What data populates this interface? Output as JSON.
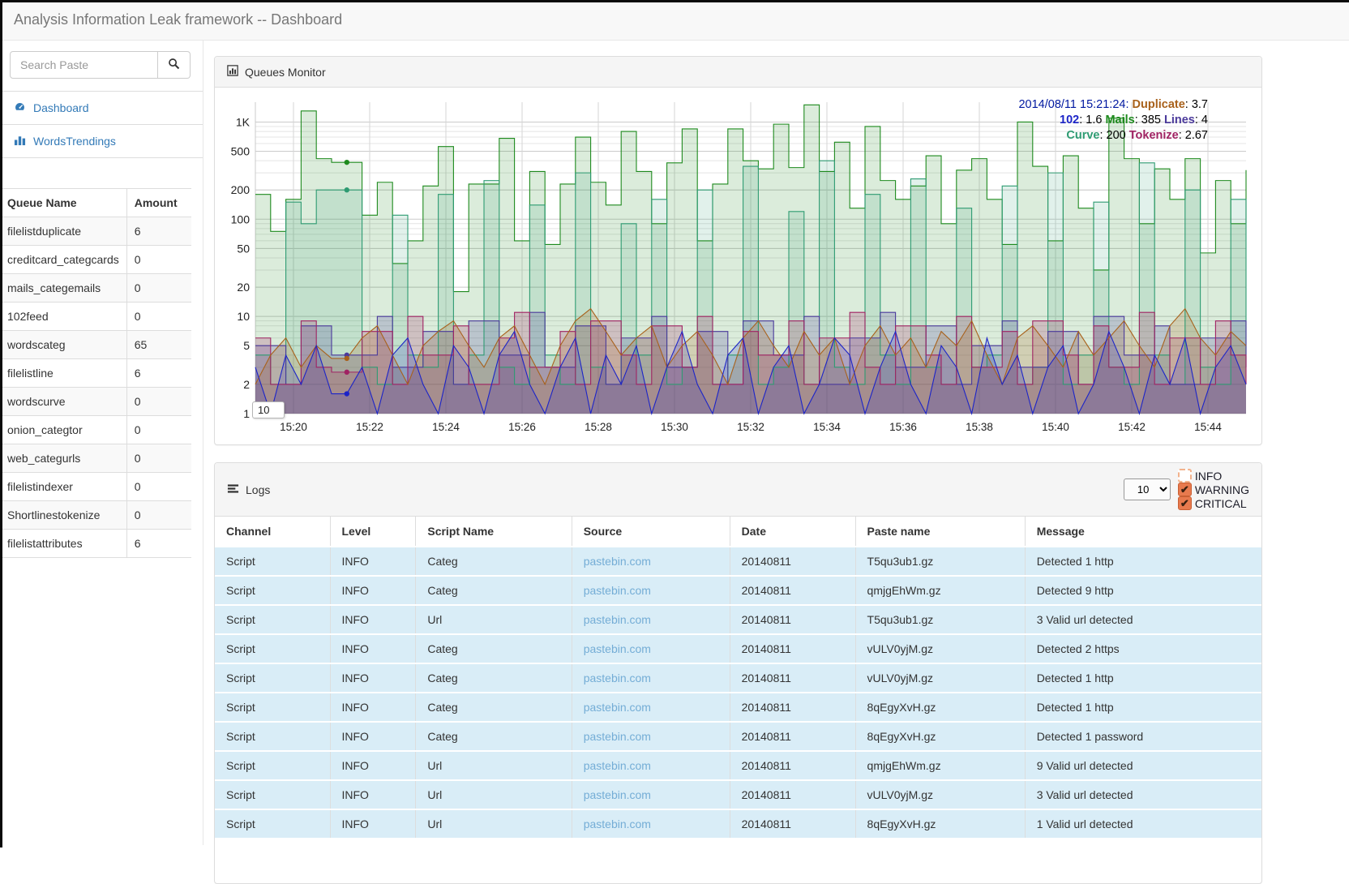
{
  "header": {
    "title": "Analysis Information Leak framework -- Dashboard"
  },
  "colors": {
    "accent_link": "#337ab7",
    "pastebin_link": "#74add6",
    "log_row_bg": "#d9edf7",
    "checkbox_orange": "#e87a4e",
    "navbar_text": "#777777"
  },
  "sidebar": {
    "search_placeholder": "Search Paste",
    "nav": [
      {
        "label": "Dashboard",
        "icon": "dashboard-icon"
      },
      {
        "label": "WordsTrendings",
        "icon": "bar-chart-icon"
      }
    ],
    "queues": {
      "columns": [
        "Queue Name",
        "Amount"
      ],
      "rows": [
        [
          "filelistduplicate",
          "6"
        ],
        [
          "creditcard_categcards",
          "0"
        ],
        [
          "mails_categemails",
          "0"
        ],
        [
          "102feed",
          "0"
        ],
        [
          "wordscateg",
          "65"
        ],
        [
          "filelistline",
          "6"
        ],
        [
          "wordscurve",
          "0"
        ],
        [
          "onion_categtor",
          "0"
        ],
        [
          "web_categurls",
          "0"
        ],
        [
          "filelistindexer",
          "0"
        ],
        [
          "Shortlinestokenize",
          "0"
        ],
        [
          "filelistattributes",
          "6"
        ]
      ]
    }
  },
  "monitor": {
    "title": "Queues Monitor",
    "roll_value": "10",
    "legend_lines": [
      [
        {
          "text": "2014/08/11 15:21:24:",
          "color": "#0018A0"
        },
        {
          "name": "Duplicate",
          "value": "3.7",
          "color": "#A8611B"
        }
      ],
      [
        {
          "name": "102",
          "value": "1.6",
          "color": "#1C24C8"
        },
        {
          "name": "Mails",
          "value": "385",
          "color": "#1E8A1E"
        },
        {
          "name": "Lines",
          "value": "4",
          "color": "#4B3A9B"
        }
      ],
      [
        {
          "name": "Curve",
          "value": "200",
          "color": "#2E9B72"
        },
        {
          "name": "Tokenize",
          "value": "2.67",
          "color": "#A02363"
        }
      ]
    ]
  },
  "chart_data": {
    "type": "line",
    "scale_y": "log",
    "grid": true,
    "ylim": [
      1,
      1600
    ],
    "y_ticks": [
      [
        1,
        "1"
      ],
      [
        2,
        "2"
      ],
      [
        5,
        "5"
      ],
      [
        10,
        "10"
      ],
      [
        20,
        "20"
      ],
      [
        50,
        "50"
      ],
      [
        100,
        "100"
      ],
      [
        200,
        "200"
      ],
      [
        500,
        "500"
      ],
      [
        1000,
        "1K"
      ]
    ],
    "x_ticks": [
      "15:20",
      "15:22",
      "15:24",
      "15:26",
      "15:28",
      "15:30",
      "15:32",
      "15:34",
      "15:36",
      "15:38",
      "15:40",
      "15:42",
      "15:44"
    ],
    "x_start": "15:19",
    "x_span_minutes": 26,
    "x_tick_interval_minutes": 2,
    "highlight_time": "15:21:24",
    "highlight_index": 6,
    "series": [
      {
        "name": "Mails",
        "color": "#1E8A1E",
        "fill_opacity": 0.16,
        "step": true,
        "values": [
          180,
          75,
          160,
          1300,
          420,
          385,
          385,
          110,
          240,
          35,
          60,
          220,
          560,
          18,
          230,
          230,
          680,
          60,
          310,
          55,
          230,
          700,
          240,
          140,
          800,
          310,
          90,
          380,
          850,
          60,
          230,
          850,
          400,
          330,
          950,
          340,
          1500,
          310,
          620,
          130,
          900,
          250,
          160,
          220,
          450,
          90,
          320,
          420,
          160,
          55,
          1000,
          350,
          60,
          450,
          130,
          30,
          1100,
          420,
          90,
          330,
          160,
          420,
          45,
          250,
          90,
          320
        ]
      },
      {
        "name": "Curve",
        "color": "#2E9B72",
        "fill_opacity": 0.14,
        "step": true,
        "values": [
          4,
          2,
          150,
          90,
          200,
          200,
          200,
          3,
          2,
          110,
          4,
          3,
          180,
          2,
          4,
          250,
          3,
          2,
          140,
          4,
          2,
          300,
          3,
          2,
          90,
          4,
          160,
          2,
          3,
          200,
          2,
          4,
          350,
          2,
          3,
          120,
          2,
          400,
          3,
          2,
          180,
          4,
          2,
          260,
          3,
          2,
          130,
          3,
          4,
          220,
          2,
          3,
          300,
          2,
          4,
          150,
          3,
          2,
          380,
          4,
          2,
          200,
          3,
          2,
          160,
          3
        ]
      },
      {
        "name": "Lines",
        "color": "#4B3A9B",
        "fill_opacity": 0.22,
        "step": true,
        "values": [
          5,
          5,
          2,
          8,
          8,
          4,
          4,
          4,
          10,
          3,
          3,
          7,
          7,
          2,
          9,
          9,
          4,
          4,
          11,
          3,
          3,
          8,
          8,
          2,
          6,
          6,
          10,
          3,
          3,
          7,
          7,
          2,
          9,
          9,
          4,
          4,
          10,
          2,
          2,
          6,
          6,
          11,
          3,
          3,
          8,
          8,
          2,
          5,
          5,
          9,
          3,
          3,
          7,
          7,
          2,
          10,
          10,
          4,
          4,
          8,
          2,
          2,
          6,
          6,
          9,
          3
        ]
      },
      {
        "name": "Tokenize",
        "color": "#A02363",
        "fill_opacity": 0.22,
        "step": true,
        "values": [
          6,
          2,
          2,
          9,
          3,
          2.67,
          2.67,
          7,
          7,
          2,
          10,
          4,
          4,
          8,
          2,
          2,
          6,
          11,
          3,
          3,
          7,
          2,
          9,
          9,
          4,
          2,
          8,
          8,
          3,
          10,
          2,
          2,
          7,
          4,
          4,
          9,
          2,
          6,
          6,
          11,
          3,
          2,
          8,
          8,
          4,
          2,
          10,
          3,
          3,
          7,
          2,
          9,
          9,
          4,
          2,
          8,
          3,
          3,
          11,
          2,
          6,
          6,
          2,
          9,
          4,
          2
        ]
      },
      {
        "name": "Duplicate",
        "color": "#A8611B",
        "fill_opacity": 0.2,
        "step": false,
        "values": [
          2,
          4,
          6,
          3,
          5,
          3.7,
          3.7,
          6,
          8,
          4,
          2,
          5,
          7,
          9,
          5,
          3,
          6,
          8,
          4,
          2,
          5,
          9,
          12,
          7,
          4,
          6,
          8,
          3,
          5,
          7,
          4,
          2,
          6,
          9,
          5,
          3,
          7,
          4,
          6,
          2,
          5,
          8,
          4,
          6,
          3,
          7,
          5,
          9,
          4,
          2,
          6,
          8,
          5,
          3,
          7,
          4,
          6,
          9,
          5,
          3,
          8,
          12,
          6,
          4,
          7,
          5
        ]
      },
      {
        "name": "102",
        "color": "#1C24C8",
        "fill_opacity": 0.18,
        "step": false,
        "values": [
          3,
          1,
          4,
          2,
          5,
          1.6,
          1.6,
          3,
          1,
          4,
          6,
          2,
          1,
          5,
          3,
          1,
          4,
          7,
          2,
          1,
          3,
          6,
          1,
          4,
          2,
          5,
          1,
          3,
          7,
          2,
          1,
          4,
          6,
          1,
          3,
          5,
          1,
          2,
          6,
          4,
          1,
          3,
          7,
          2,
          1,
          5,
          3,
          1,
          6,
          2,
          4,
          1,
          3,
          5,
          1,
          2,
          7,
          3,
          1,
          4,
          2,
          6,
          1,
          3,
          5,
          2
        ]
      }
    ]
  },
  "logs": {
    "title": "Logs",
    "page_size": "10",
    "filters": [
      {
        "label": "INFO",
        "checked": false
      },
      {
        "label": "WARNING",
        "checked": true
      },
      {
        "label": "CRITICAL",
        "checked": true
      }
    ],
    "columns": [
      "Channel",
      "Level",
      "Script Name",
      "Source",
      "Date",
      "Paste name",
      "Message"
    ],
    "column_keys": [
      "channel",
      "level",
      "script-name",
      "source",
      "date",
      "paste-name",
      "message"
    ],
    "rows": [
      [
        "Script",
        "INFO",
        "Categ",
        "pastebin.com",
        "20140811",
        "T5qu3ub1.gz",
        "Detected 1 http"
      ],
      [
        "Script",
        "INFO",
        "Categ",
        "pastebin.com",
        "20140811",
        "qmjgEhWm.gz",
        "Detected 9 http"
      ],
      [
        "Script",
        "INFO",
        "Url",
        "pastebin.com",
        "20140811",
        "T5qu3ub1.gz",
        "3 Valid url detected"
      ],
      [
        "Script",
        "INFO",
        "Categ",
        "pastebin.com",
        "20140811",
        "vULV0yjM.gz",
        "Detected 2 https"
      ],
      [
        "Script",
        "INFO",
        "Categ",
        "pastebin.com",
        "20140811",
        "vULV0yjM.gz",
        "Detected 1 http"
      ],
      [
        "Script",
        "INFO",
        "Categ",
        "pastebin.com",
        "20140811",
        "8qEgyXvH.gz",
        "Detected 1 http"
      ],
      [
        "Script",
        "INFO",
        "Categ",
        "pastebin.com",
        "20140811",
        "8qEgyXvH.gz",
        "Detected 1 password"
      ],
      [
        "Script",
        "INFO",
        "Url",
        "pastebin.com",
        "20140811",
        "qmjgEhWm.gz",
        "9 Valid url detected"
      ],
      [
        "Script",
        "INFO",
        "Url",
        "pastebin.com",
        "20140811",
        "vULV0yjM.gz",
        "3 Valid url detected"
      ],
      [
        "Script",
        "INFO",
        "Url",
        "pastebin.com",
        "20140811",
        "8qEgyXvH.gz",
        "1 Valid url detected"
      ]
    ]
  }
}
